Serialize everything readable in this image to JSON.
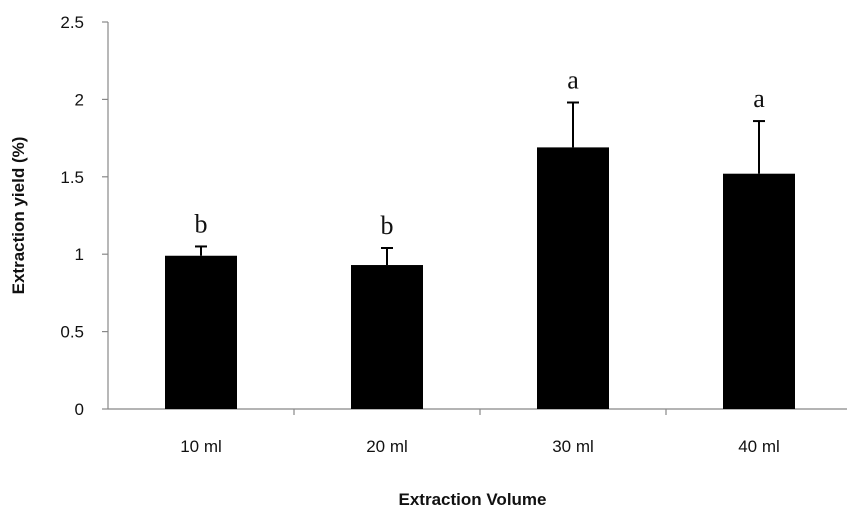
{
  "chart_data": {
    "type": "bar",
    "categories": [
      "10 ml",
      "20 ml",
      "30 ml",
      "40 ml"
    ],
    "values": [
      0.99,
      0.93,
      1.69,
      1.52
    ],
    "error_upper": [
      0.06,
      0.11,
      0.29,
      0.34
    ],
    "significance_labels": [
      "b",
      "b",
      "a",
      "a"
    ],
    "title": "",
    "xlabel": "Extraction Volume",
    "ylabel": "Extraction yield (%)",
    "ylim": [
      0,
      2.5
    ],
    "yticks": [
      "0",
      "0.5",
      "1",
      "1.5",
      "2",
      "2.5"
    ],
    "ytick_values": [
      0,
      0.5,
      1,
      1.5,
      2,
      2.5
    ],
    "grid": false,
    "legend": "none",
    "colors": {
      "bar": "#000000",
      "axis": "#888888",
      "text": "#111111"
    }
  }
}
